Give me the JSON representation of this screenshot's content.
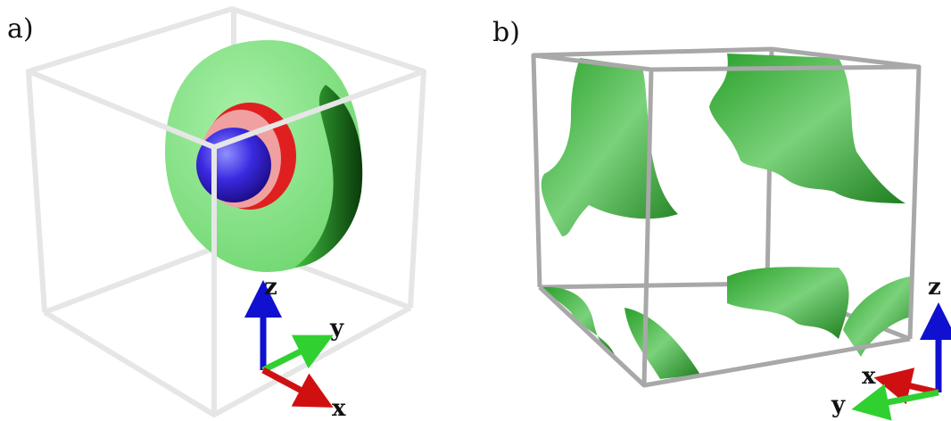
{
  "panels": [
    {
      "label": "a)",
      "axes": {
        "z": "z",
        "y": "y",
        "x": "x"
      }
    },
    {
      "label": "b)",
      "axes": {
        "z": "z",
        "x": "x",
        "y": "y"
      }
    }
  ]
}
